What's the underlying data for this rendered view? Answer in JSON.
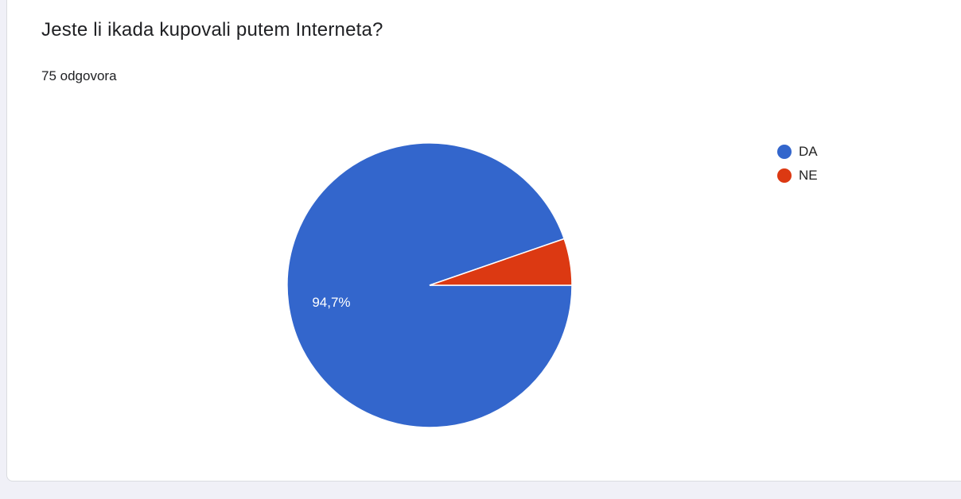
{
  "question": {
    "title": "Jeste li ikada kupovali putem Interneta?",
    "response_count": "75 odgovora"
  },
  "chart_data": {
    "type": "pie",
    "categories": [
      "DA",
      "NE"
    ],
    "values": [
      94.7,
      5.3
    ],
    "colors": [
      "#3366cc",
      "#dc3912"
    ],
    "data_labels": [
      "94,7%",
      ""
    ],
    "legend": "right"
  }
}
